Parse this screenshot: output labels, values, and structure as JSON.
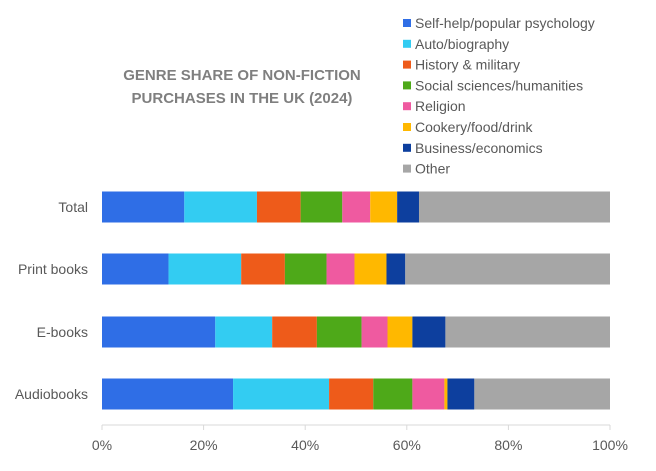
{
  "chart_data": {
    "type": "bar",
    "orientation": "horizontal",
    "stacked": true,
    "title": "GENRE SHARE OF NON-FICTION PURCHASES IN THE UK (2024)",
    "title_lines": [
      "GENRE SHARE OF NON-FICTION",
      "PURCHASES IN THE UK (2024)"
    ],
    "categories": [
      "Total",
      "Print books",
      "E-books",
      "Audiobooks"
    ],
    "series": [
      {
        "name": "Self-help/popular psychology",
        "color": "#2f6ee6",
        "values": [
          16.2,
          13.1,
          22.3,
          25.8
        ]
      },
      {
        "name": "Auto/biography",
        "color": "#33ccf2",
        "values": [
          14.3,
          14.3,
          11.2,
          18.9
        ]
      },
      {
        "name": "History & military",
        "color": "#ee5b1a",
        "values": [
          8.6,
          8.6,
          8.8,
          8.7
        ]
      },
      {
        "name": "Social sciences/humanities",
        "color": "#4ea919",
        "values": [
          8.2,
          8.2,
          8.8,
          7.7
        ]
      },
      {
        "name": "Religion",
        "color": "#ef5aa0",
        "values": [
          5.5,
          5.5,
          5.1,
          6.3
        ]
      },
      {
        "name": "Cookery/food/drink",
        "color": "#ffb800",
        "values": [
          5.3,
          6.3,
          4.9,
          0.6
        ]
      },
      {
        "name": "Business/economics",
        "color": "#0d3f9e",
        "values": [
          4.3,
          3.7,
          6.5,
          5.3
        ]
      },
      {
        "name": "Other",
        "color": "#a6a6a6",
        "values": [
          37.6,
          40.3,
          32.4,
          26.7
        ]
      }
    ],
    "xlim": [
      0,
      100
    ],
    "x_ticks": [
      "0%",
      "20%",
      "40%",
      "60%",
      "80%",
      "100%"
    ],
    "x_tick_values": [
      0,
      20,
      40,
      60,
      80,
      100
    ],
    "grid": false,
    "legend_position": "top-right"
  }
}
